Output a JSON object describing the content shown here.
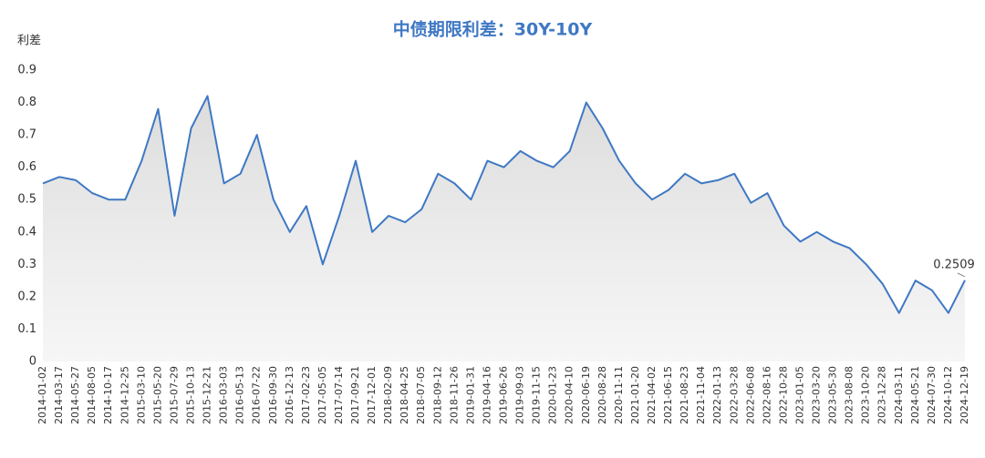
{
  "chart_data": {
    "type": "line",
    "title": "中债期限利差：30Y-10Y",
    "y_label": "利差",
    "x": [
      "2014-01-02",
      "2014-03-17",
      "2014-05-27",
      "2014-08-05",
      "2014-10-17",
      "2014-12-25",
      "2015-03-10",
      "2015-05-20",
      "2015-07-29",
      "2015-10-13",
      "2015-12-21",
      "2016-03-03",
      "2016-05-13",
      "2016-07-22",
      "2016-09-30",
      "2016-12-13",
      "2017-02-23",
      "2017-05-05",
      "2017-07-14",
      "2017-09-21",
      "2017-12-01",
      "2018-02-09",
      "2018-04-25",
      "2018-07-05",
      "2018-09-12",
      "2018-11-26",
      "2019-01-31",
      "2019-04-16",
      "2019-06-26",
      "2019-09-03",
      "2019-11-15",
      "2020-01-23",
      "2020-04-10",
      "2020-06-19",
      "2020-08-28",
      "2020-11-11",
      "2021-01-20",
      "2021-04-02",
      "2021-06-15",
      "2021-08-23",
      "2021-11-04",
      "2022-01-13",
      "2022-03-28",
      "2022-06-08",
      "2022-08-16",
      "2022-10-28",
      "2023-01-05",
      "2023-03-20",
      "2023-05-30",
      "2023-08-08",
      "2023-10-20",
      "2023-12-28",
      "2024-03-11",
      "2024-05-21",
      "2024-07-30",
      "2024-10-12",
      "2024-12-19"
    ],
    "values": [
      0.55,
      0.57,
      0.56,
      0.52,
      0.5,
      0.5,
      0.62,
      0.78,
      0.45,
      0.72,
      0.82,
      0.55,
      0.58,
      0.7,
      0.5,
      0.4,
      0.48,
      0.3,
      0.45,
      0.62,
      0.4,
      0.45,
      0.43,
      0.47,
      0.58,
      0.55,
      0.5,
      0.62,
      0.6,
      0.65,
      0.62,
      0.6,
      0.65,
      0.8,
      0.72,
      0.62,
      0.55,
      0.5,
      0.53,
      0.58,
      0.55,
      0.56,
      0.58,
      0.49,
      0.52,
      0.42,
      0.37,
      0.4,
      0.37,
      0.35,
      0.3,
      0.24,
      0.15,
      0.25,
      0.22,
      0.15,
      0.2509
    ],
    "color": "#3f78c4",
    "ylim": [
      0,
      0.9
    ],
    "yticks": [
      0,
      0.1,
      0.2,
      0.3,
      0.4,
      0.5,
      0.6,
      0.7,
      0.8,
      0.9
    ]
  }
}
